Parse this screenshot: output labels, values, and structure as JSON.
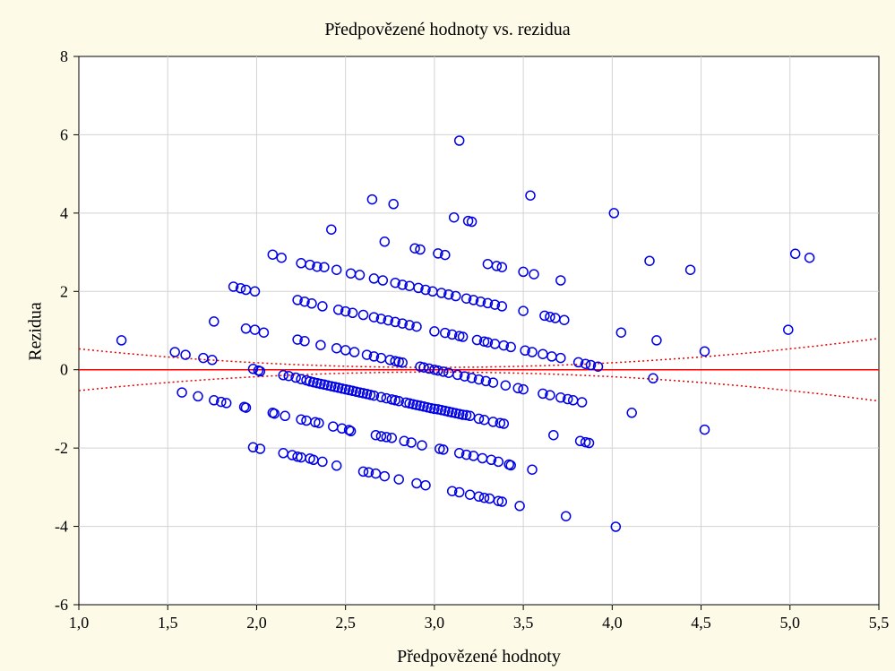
{
  "chart_data": {
    "type": "scatter",
    "title": "Předpovězené hodnoty vs. rezidua",
    "xlabel": "Předpovězené hodnoty",
    "ylabel": "Rezidua",
    "xlim": [
      1.0,
      5.5
    ],
    "ylim": [
      -6,
      8
    ],
    "x_ticks": [
      "1,0",
      "1,5",
      "2,0",
      "2,5",
      "3,0",
      "3,5",
      "4,0",
      "4,5",
      "5,0",
      "5,5"
    ],
    "y_ticks": [
      "-6",
      "-4",
      "-2",
      "0",
      "2",
      "4",
      "6",
      "8"
    ],
    "grid": true,
    "colors": {
      "points": "#0000e6",
      "fit_line": "#ff0000",
      "confidence_band": "#e00000",
      "background": "#fdfbe8",
      "plot_area": "#ffffff",
      "grid": "#d3d3d3"
    },
    "fit_line": {
      "slope": 0,
      "intercept": 0
    },
    "confidence_band": {
      "center_x": 3.0,
      "min_halfwidth": 0.06,
      "edge_halfwidth": 0.8
    },
    "points": [
      [
        1.24,
        0.75
      ],
      [
        1.54,
        0.45
      ],
      [
        1.6,
        0.38
      ],
      [
        1.7,
        0.3
      ],
      [
        1.75,
        0.25
      ],
      [
        1.76,
        1.23
      ],
      [
        1.58,
        -0.58
      ],
      [
        1.67,
        -0.68
      ],
      [
        1.76,
        -0.78
      ],
      [
        1.8,
        -0.82
      ],
      [
        1.83,
        -0.85
      ],
      [
        1.93,
        -0.95
      ],
      [
        1.94,
        -0.97
      ],
      [
        1.87,
        2.12
      ],
      [
        1.91,
        2.08
      ],
      [
        1.94,
        2.04
      ],
      [
        1.99,
        2.0
      ],
      [
        1.94,
        1.05
      ],
      [
        1.99,
        1.02
      ],
      [
        2.04,
        0.95
      ],
      [
        1.98,
        0.02
      ],
      [
        2.01,
        -0.02
      ],
      [
        2.02,
        -0.04
      ],
      [
        1.98,
        -1.98
      ],
      [
        2.02,
        -2.02
      ],
      [
        2.09,
        2.94
      ],
      [
        2.14,
        2.86
      ],
      [
        2.09,
        -1.1
      ],
      [
        2.1,
        -1.12
      ],
      [
        2.16,
        -1.18
      ],
      [
        2.25,
        -1.27
      ],
      [
        2.28,
        -1.3
      ],
      [
        2.33,
        -1.34
      ],
      [
        2.35,
        -1.36
      ],
      [
        2.43,
        -1.45
      ],
      [
        2.48,
        -1.5
      ],
      [
        2.52,
        -1.54
      ],
      [
        2.53,
        -1.57
      ],
      [
        2.15,
        -2.13
      ],
      [
        2.2,
        -2.18
      ],
      [
        2.23,
        -2.22
      ],
      [
        2.25,
        -2.24
      ],
      [
        2.3,
        -2.27
      ],
      [
        2.32,
        -2.3
      ],
      [
        2.37,
        -2.35
      ],
      [
        2.45,
        -2.45
      ],
      [
        2.15,
        -0.14
      ],
      [
        2.18,
        -0.16
      ],
      [
        2.22,
        -0.2
      ],
      [
        2.25,
        -0.24
      ],
      [
        2.28,
        -0.27
      ],
      [
        2.3,
        -0.3
      ],
      [
        2.32,
        -0.32
      ],
      [
        2.34,
        -0.34
      ],
      [
        2.36,
        -0.36
      ],
      [
        2.38,
        -0.38
      ],
      [
        2.4,
        -0.4
      ],
      [
        2.42,
        -0.42
      ],
      [
        2.44,
        -0.44
      ],
      [
        2.46,
        -0.46
      ],
      [
        2.48,
        -0.48
      ],
      [
        2.5,
        -0.5
      ],
      [
        2.52,
        -0.52
      ],
      [
        2.54,
        -0.54
      ],
      [
        2.56,
        -0.56
      ],
      [
        2.58,
        -0.58
      ],
      [
        2.6,
        -0.6
      ],
      [
        2.62,
        -0.62
      ],
      [
        2.64,
        -0.64
      ],
      [
        2.66,
        -0.66
      ],
      [
        2.7,
        -0.7
      ],
      [
        2.73,
        -0.73
      ],
      [
        2.76,
        -0.76
      ],
      [
        2.78,
        -0.78
      ],
      [
        2.8,
        -0.8
      ],
      [
        2.84,
        -0.84
      ],
      [
        2.86,
        -0.86
      ],
      [
        2.88,
        -0.88
      ],
      [
        2.9,
        -0.9
      ],
      [
        2.92,
        -0.92
      ],
      [
        2.94,
        -0.94
      ],
      [
        2.96,
        -0.96
      ],
      [
        2.98,
        -0.98
      ],
      [
        3.0,
        -1.0
      ],
      [
        3.02,
        -1.01
      ],
      [
        3.04,
        -1.03
      ],
      [
        3.06,
        -1.05
      ],
      [
        3.08,
        -1.07
      ],
      [
        3.1,
        -1.09
      ],
      [
        3.12,
        -1.11
      ],
      [
        3.14,
        -1.13
      ],
      [
        3.16,
        -1.15
      ],
      [
        3.18,
        -1.16
      ],
      [
        3.2,
        -1.18
      ],
      [
        2.23,
        1.78
      ],
      [
        2.27,
        1.74
      ],
      [
        2.31,
        1.69
      ],
      [
        2.37,
        1.62
      ],
      [
        2.46,
        1.53
      ],
      [
        2.5,
        1.49
      ],
      [
        2.54,
        1.45
      ],
      [
        2.6,
        1.4
      ],
      [
        2.66,
        1.34
      ],
      [
        2.7,
        1.3
      ],
      [
        2.74,
        1.26
      ],
      [
        2.78,
        1.22
      ],
      [
        2.82,
        1.18
      ],
      [
        2.86,
        1.14
      ],
      [
        2.9,
        1.1
      ],
      [
        2.25,
        2.72
      ],
      [
        2.3,
        2.68
      ],
      [
        2.34,
        2.63
      ],
      [
        2.38,
        2.62
      ],
      [
        2.45,
        2.55
      ],
      [
        2.53,
        2.46
      ],
      [
        2.58,
        2.42
      ],
      [
        2.66,
        2.33
      ],
      [
        2.71,
        2.28
      ],
      [
        2.78,
        2.22
      ],
      [
        2.82,
        2.17
      ],
      [
        2.86,
        2.14
      ],
      [
        2.91,
        2.09
      ],
      [
        2.95,
        2.04
      ],
      [
        2.99,
        2.0
      ],
      [
        3.04,
        1.96
      ],
      [
        3.08,
        1.92
      ],
      [
        3.12,
        1.88
      ],
      [
        3.18,
        1.82
      ],
      [
        3.22,
        1.78
      ],
      [
        3.26,
        1.74
      ],
      [
        3.3,
        1.7
      ],
      [
        3.34,
        1.66
      ],
      [
        3.38,
        1.62
      ],
      [
        2.23,
        0.77
      ],
      [
        2.27,
        0.73
      ],
      [
        2.36,
        0.63
      ],
      [
        2.45,
        0.55
      ],
      [
        2.5,
        0.5
      ],
      [
        2.55,
        0.45
      ],
      [
        2.62,
        0.38
      ],
      [
        2.66,
        0.34
      ],
      [
        2.7,
        0.3
      ],
      [
        2.75,
        0.25
      ],
      [
        2.78,
        0.22
      ],
      [
        2.8,
        0.2
      ],
      [
        2.82,
        0.18
      ],
      [
        2.42,
        3.58
      ],
      [
        2.65,
        4.35
      ],
      [
        2.72,
        3.27
      ],
      [
        2.77,
        4.23
      ],
      [
        2.89,
        3.1
      ],
      [
        2.92,
        3.07
      ],
      [
        3.02,
        2.97
      ],
      [
        3.06,
        2.93
      ],
      [
        3.11,
        3.89
      ],
      [
        3.14,
        5.85
      ],
      [
        3.19,
        3.8
      ],
      [
        3.21,
        3.78
      ],
      [
        2.6,
        -2.6
      ],
      [
        2.63,
        -2.62
      ],
      [
        2.67,
        -2.65
      ],
      [
        2.72,
        -2.72
      ],
      [
        2.8,
        -2.8
      ],
      [
        2.9,
        -2.9
      ],
      [
        2.95,
        -2.95
      ],
      [
        3.1,
        -3.1
      ],
      [
        3.14,
        -3.13
      ],
      [
        3.2,
        -3.19
      ],
      [
        3.25,
        -3.24
      ],
      [
        3.28,
        -3.27
      ],
      [
        3.31,
        -3.29
      ],
      [
        3.36,
        -3.35
      ],
      [
        3.38,
        -3.37
      ],
      [
        3.48,
        -3.48
      ],
      [
        2.67,
        -1.67
      ],
      [
        2.7,
        -1.7
      ],
      [
        2.73,
        -1.72
      ],
      [
        2.76,
        -1.74
      ],
      [
        2.83,
        -1.82
      ],
      [
        2.87,
        -1.86
      ],
      [
        2.93,
        -1.93
      ],
      [
        3.03,
        -2.02
      ],
      [
        3.05,
        -2.04
      ],
      [
        3.14,
        -2.13
      ],
      [
        3.18,
        -2.17
      ],
      [
        3.22,
        -2.2
      ],
      [
        3.27,
        -2.26
      ],
      [
        3.32,
        -2.3
      ],
      [
        3.36,
        -2.35
      ],
      [
        3.42,
        -2.42
      ],
      [
        3.43,
        -2.44
      ],
      [
        3.55,
        -2.55
      ],
      [
        2.92,
        0.08
      ],
      [
        2.94,
        0.06
      ],
      [
        2.97,
        0.03
      ],
      [
        3.0,
        0.0
      ],
      [
        3.02,
        -0.02
      ],
      [
        3.05,
        -0.05
      ],
      [
        3.08,
        -0.08
      ],
      [
        3.13,
        -0.13
      ],
      [
        3.17,
        -0.17
      ],
      [
        3.21,
        -0.21
      ],
      [
        3.25,
        -0.25
      ],
      [
        3.29,
        -0.29
      ],
      [
        3.33,
        -0.33
      ],
      [
        3.0,
        0.98
      ],
      [
        3.06,
        0.94
      ],
      [
        3.1,
        0.9
      ],
      [
        3.14,
        0.86
      ],
      [
        3.16,
        0.84
      ],
      [
        3.24,
        0.76
      ],
      [
        3.28,
        0.72
      ],
      [
        3.3,
        0.7
      ],
      [
        3.34,
        0.66
      ],
      [
        3.39,
        0.62
      ],
      [
        3.43,
        0.58
      ],
      [
        3.51,
        0.49
      ],
      [
        3.55,
        0.45
      ],
      [
        3.61,
        0.4
      ],
      [
        3.66,
        0.34
      ],
      [
        3.71,
        0.3
      ],
      [
        3.81,
        0.19
      ],
      [
        3.85,
        0.15
      ],
      [
        3.88,
        0.12
      ],
      [
        3.92,
        0.08
      ],
      [
        3.25,
        -1.25
      ],
      [
        3.28,
        -1.28
      ],
      [
        3.33,
        -1.33
      ],
      [
        3.37,
        -1.36
      ],
      [
        3.39,
        -1.38
      ],
      [
        3.3,
        2.7
      ],
      [
        3.35,
        2.65
      ],
      [
        3.38,
        2.62
      ],
      [
        3.5,
        2.5
      ],
      [
        3.56,
        2.44
      ],
      [
        3.54,
        4.45
      ],
      [
        3.4,
        -0.4
      ],
      [
        3.47,
        -0.47
      ],
      [
        3.5,
        -0.5
      ],
      [
        3.61,
        -0.61
      ],
      [
        3.65,
        -0.65
      ],
      [
        3.71,
        -0.71
      ],
      [
        3.75,
        -0.75
      ],
      [
        3.78,
        -0.78
      ],
      [
        3.83,
        -0.83
      ],
      [
        3.5,
        1.5
      ],
      [
        3.62,
        1.38
      ],
      [
        3.65,
        1.35
      ],
      [
        3.68,
        1.32
      ],
      [
        3.73,
        1.27
      ],
      [
        3.67,
        -1.67
      ],
      [
        3.71,
        2.28
      ],
      [
        3.74,
        -3.74
      ],
      [
        3.82,
        -1.82
      ],
      [
        3.85,
        -1.85
      ],
      [
        3.87,
        -1.87
      ],
      [
        4.01,
        4.0
      ],
      [
        4.02,
        -4.01
      ],
      [
        4.05,
        0.95
      ],
      [
        4.11,
        -1.1
      ],
      [
        4.21,
        2.78
      ],
      [
        4.23,
        -0.22
      ],
      [
        4.25,
        0.75
      ],
      [
        4.44,
        2.55
      ],
      [
        4.52,
        0.47
      ],
      [
        4.52,
        -1.53
      ],
      [
        4.99,
        1.02
      ],
      [
        5.03,
        2.96
      ],
      [
        5.11,
        2.86
      ]
    ]
  }
}
